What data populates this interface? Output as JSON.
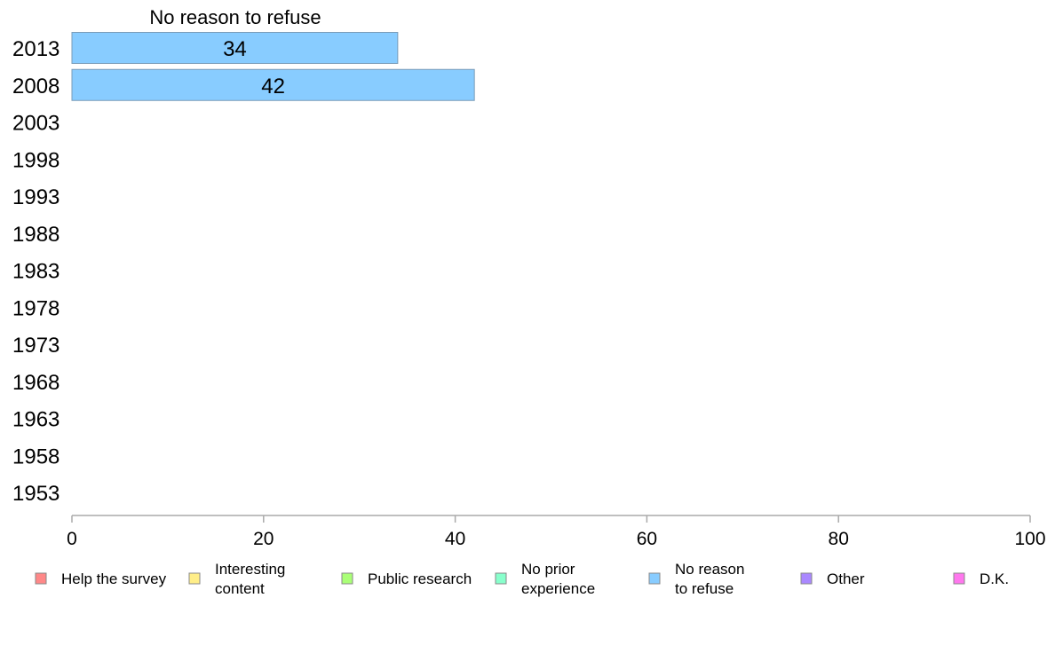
{
  "chart_data": {
    "type": "bar",
    "orientation": "horizontal",
    "title": "No reason to refuse",
    "categories": [
      "2013",
      "2008",
      "2003",
      "1998",
      "1993",
      "1988",
      "1983",
      "1978",
      "1973",
      "1968",
      "1963",
      "1958",
      "1953"
    ],
    "series": [
      {
        "name": "No reason to refuse",
        "color": "#88ccff",
        "values": [
          34,
          42,
          null,
          null,
          null,
          null,
          null,
          null,
          null,
          null,
          null,
          null,
          null
        ],
        "data_labels": [
          "34",
          "42",
          "",
          "",
          "",
          "",
          "",
          "",
          "",
          "",
          "",
          "",
          ""
        ]
      }
    ],
    "xlim": [
      0,
      100
    ],
    "xticks": [
      0,
      20,
      40,
      60,
      80,
      100
    ],
    "grid": false,
    "legend": {
      "placement": "bottom",
      "entries": [
        {
          "lines": [
            "Help the survey"
          ],
          "color": "#ff8888"
        },
        {
          "lines": [
            "Interesting",
            "content"
          ],
          "color": "#ffee88"
        },
        {
          "lines": [
            "Public research"
          ],
          "color": "#aaff77"
        },
        {
          "lines": [
            "No prior",
            "experience"
          ],
          "color": "#88ffcc"
        },
        {
          "lines": [
            "No reason",
            "to refuse"
          ],
          "color": "#88ccff"
        },
        {
          "lines": [
            "Other"
          ],
          "color": "#aa88ff"
        },
        {
          "lines": [
            "D.K."
          ],
          "color": "#ff77ee"
        }
      ]
    }
  }
}
